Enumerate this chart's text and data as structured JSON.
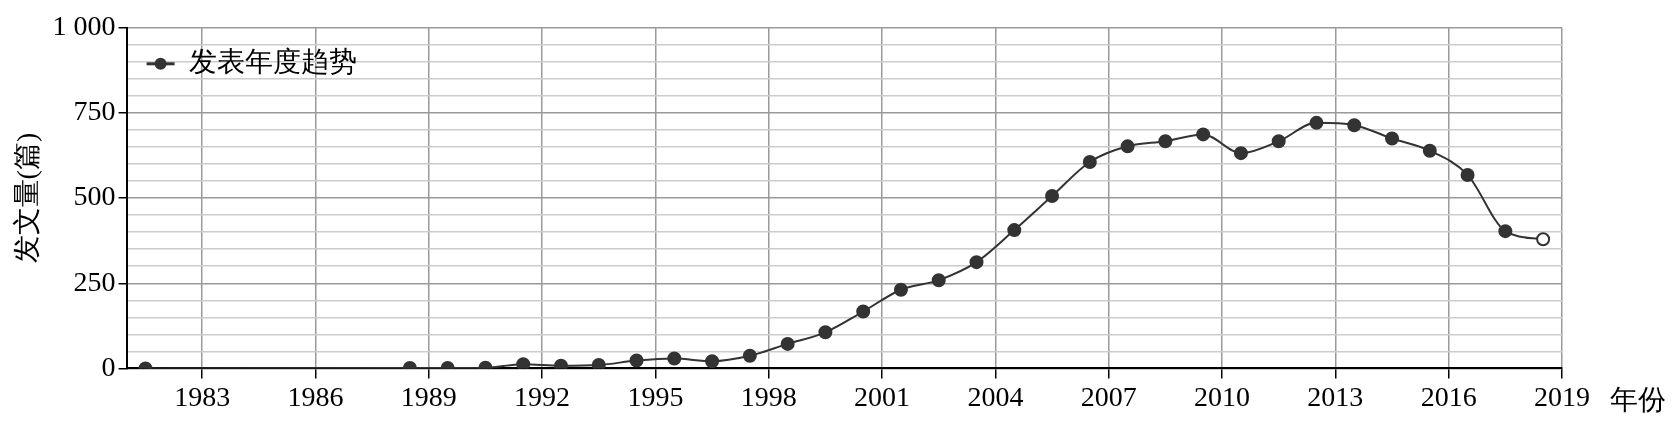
{
  "chart_data": {
    "type": "line",
    "xlabel": "年份",
    "ylabel": "发文量(篇)",
    "legend": "top left",
    "grid": true,
    "marker": "circle",
    "line_style": "solid",
    "xlim": [
      1981,
      2019
    ],
    "xticks": [
      1983,
      1986,
      1989,
      1992,
      1995,
      1998,
      2001,
      2004,
      2007,
      2010,
      2013,
      2016,
      2019
    ],
    "ylim": [
      0,
      1000
    ],
    "yticks": [
      0,
      {
        "value": 50,
        "label": null
      },
      {
        "value": 100,
        "label": null
      },
      {
        "value": 150,
        "label": null
      },
      {
        "value": 200,
        "label": null
      },
      250,
      {
        "value": 300,
        "label": null
      },
      {
        "value": 350,
        "label": null
      },
      {
        "value": 400,
        "label": null
      },
      {
        "value": 450,
        "label": null
      },
      500,
      {
        "value": 550,
        "label": null
      },
      {
        "value": 600,
        "label": null
      },
      {
        "value": 650,
        "label": null
      },
      {
        "value": 700,
        "label": null
      },
      750,
      {
        "value": 800,
        "label": null
      },
      {
        "value": 850,
        "label": null
      },
      {
        "value": 900,
        "label": null
      },
      {
        "value": 950,
        "label": null
      },
      {
        "value": 1000,
        "label": "1 000"
      }
    ],
    "series": [
      {
        "name": "发表年度趋势",
        "color": "#333333",
        "colors": [
          "#333333",
          "#333333",
          "#333333",
          "#333333",
          "#333333",
          "#333333",
          "#333333",
          "#333333",
          "#333333",
          "#333333",
          "#333333",
          "#333333",
          "#333333",
          "#333333",
          "#333333",
          "#333333",
          "#333333",
          "#333333",
          "#333333",
          "#333333",
          "#333333",
          "#333333",
          "#333333",
          "#333333",
          "#333333",
          "#333333",
          "#333333",
          "#333333",
          "#333333",
          "#333333",
          "#333333",
          "#ffffff"
        ],
        "x": [
          1981.5,
          1988.5,
          1989.5,
          1990.5,
          1991.5,
          1992.5,
          1993.5,
          1994.5,
          1995.5,
          1996.5,
          1997.5,
          1998.5,
          1999.5,
          2000.5,
          2001.5,
          2002.5,
          2003.5,
          2004.5,
          2005.5,
          2006.5,
          2007.5,
          2008.5,
          2009.5,
          2010.5,
          2011.5,
          2012.5,
          2013.5,
          2014.5,
          2015.5,
          2016.5,
          2017.5,
          2018.5
        ],
        "values": [
          0,
          1,
          1,
          2,
          12,
          8,
          10,
          23,
          29,
          21,
          37,
          72,
          106,
          167,
          231,
          259,
          312,
          406,
          506,
          606,
          652,
          667,
          687,
          632,
          667,
          721,
          714,
          675,
          639,
          568,
          403,
          379
        ]
      }
    ]
  }
}
